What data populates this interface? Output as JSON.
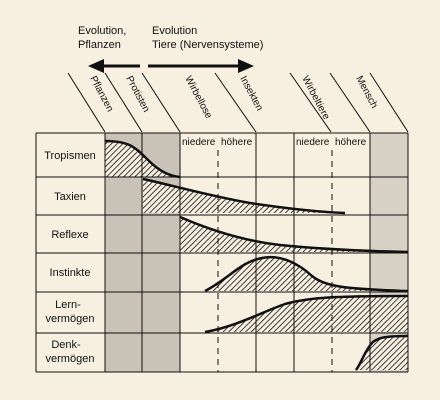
{
  "header": {
    "left_line1": "Evolution,",
    "left_line2": "Pflanzen",
    "right_line1": "Evolution",
    "right_line2": "Tiere (Nervensysteme)"
  },
  "columns": [
    "Pflanzen",
    "Protisten",
    "Wirbellose",
    "Insekten",
    "Wirbeltiere",
    "Mensch"
  ],
  "subheaders": {
    "wirbellose_lower": "niedere",
    "wirbellose_higher": "höhere",
    "wirbeltiere_lower": "niedere",
    "wirbeltiere_higher": "höhere"
  },
  "rows": [
    {
      "label1": "Tropismen",
      "label2": ""
    },
    {
      "label1": "Taxien",
      "label2": ""
    },
    {
      "label1": "Reflexe",
      "label2": ""
    },
    {
      "label1": "Instinkte",
      "label2": ""
    },
    {
      "label1": "Lern-",
      "label2": "vermögen"
    },
    {
      "label1": "Denk-",
      "label2": "vermögen"
    }
  ],
  "colors": {
    "background": "#f7efe0",
    "plant_column_shade": "#c9c2b6",
    "human_column_shade": "#d7d1c6",
    "ink": "#111111"
  }
}
